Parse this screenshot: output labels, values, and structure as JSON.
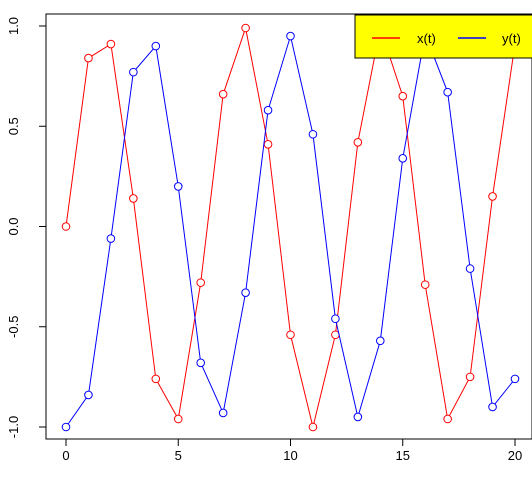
{
  "chart_data": {
    "type": "line",
    "title": "",
    "xlabel": "",
    "ylabel": "",
    "xlim": [
      0,
      20
    ],
    "ylim": [
      -1.0,
      1.0
    ],
    "x_ticks": [
      "0",
      "5",
      "10",
      "15",
      "20"
    ],
    "y_ticks": [
      "-1.0",
      "-0.5",
      "0.0",
      "0.5",
      "1.0"
    ],
    "grid": false,
    "legend_position": "top-right",
    "legend_background": "#ffff00",
    "x": [
      0,
      1,
      2,
      3,
      4,
      5,
      6,
      7,
      8,
      9,
      10,
      11,
      12,
      13,
      14,
      15,
      16,
      17,
      18,
      19,
      20
    ],
    "series": [
      {
        "name": "x(t)",
        "color": "#ff0000",
        "values": [
          0.0,
          0.84,
          0.91,
          0.14,
          -0.76,
          -0.96,
          -0.28,
          0.66,
          0.99,
          0.41,
          -0.54,
          -1.0,
          -0.54,
          0.42,
          0.99,
          0.65,
          -0.29,
          -0.96,
          -0.75,
          0.15,
          0.91
        ]
      },
      {
        "name": "y(t)",
        "color": "#0000ff",
        "values": [
          -1.0,
          -0.84,
          -0.06,
          0.77,
          0.9,
          0.2,
          -0.68,
          -0.93,
          -0.33,
          0.58,
          0.95,
          0.46,
          -0.46,
          -0.95,
          -0.57,
          0.34,
          0.96,
          0.67,
          -0.21,
          -0.9,
          -0.76
        ]
      }
    ]
  }
}
